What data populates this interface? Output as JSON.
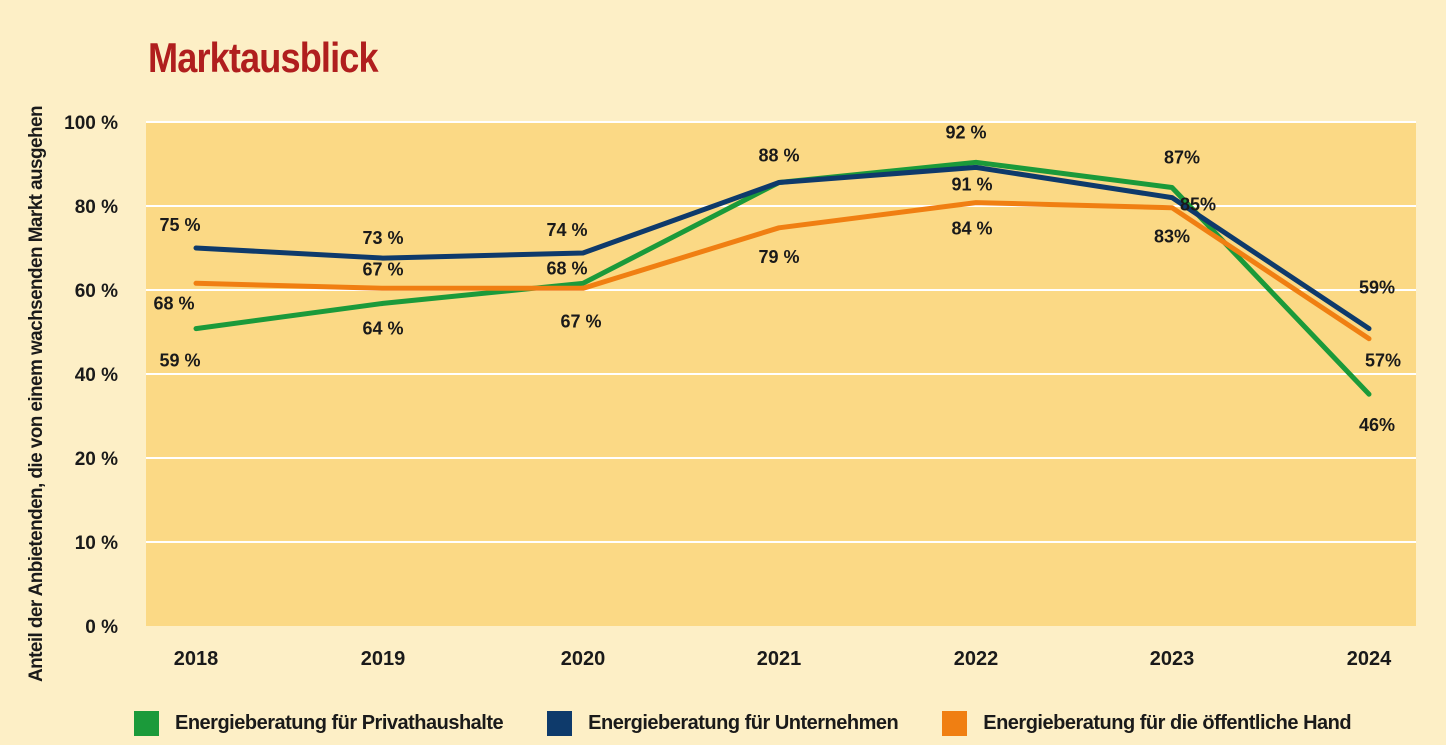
{
  "chart_data": {
    "type": "line",
    "title": "Marktausblick",
    "ylabel": "Anteil der Anbietenden, die von einem wachsenden Markt ausgehen",
    "xlabel": "",
    "categories": [
      "2018",
      "2019",
      "2020",
      "2021",
      "2022",
      "2023",
      "2024"
    ],
    "yticks": [
      "0 %",
      "10 %",
      "20 %",
      "40 %",
      "60 %",
      "80 %",
      "100 %"
    ],
    "ylim": [
      0,
      100
    ],
    "grid": true,
    "legend_position": "bottom",
    "series": [
      {
        "name": "Energieberatung für Privathaushalte",
        "color": "#1b9a3a",
        "values": [
          59,
          64,
          68,
          88,
          92,
          87,
          46
        ],
        "labels": [
          "59 %",
          "64 %",
          "68 %",
          "88 %",
          "92 %",
          "87%",
          "46%"
        ]
      },
      {
        "name": "Energieberatung für Unternehmen",
        "color": "#0e3a6b",
        "values": [
          75,
          73,
          74,
          88,
          91,
          85,
          59
        ],
        "labels": [
          "75 %",
          "73 %",
          "74 %",
          "",
          "91 %",
          "85%",
          "59%"
        ]
      },
      {
        "name": "Energieberatung für die öffentliche Hand",
        "color": "#f07f12",
        "values": [
          68,
          67,
          67,
          79,
          84,
          83,
          57
        ],
        "labels": [
          "68 %",
          "67 %",
          "67 %",
          "79 %",
          "84 %",
          "83%",
          "57%"
        ]
      }
    ]
  }
}
